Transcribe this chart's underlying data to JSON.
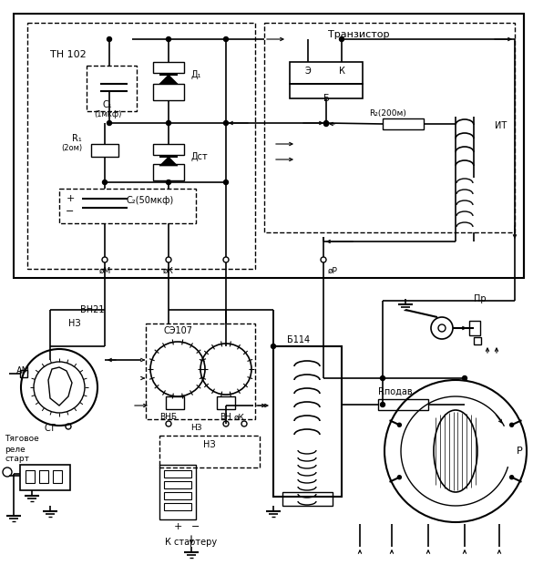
{
  "bg": "#ffffff",
  "lc": "#000000",
  "figsize": [
    5.85,
    6.2
  ],
  "dpi": 100,
  "labels": {
    "transistor": "Транзистор",
    "tn102": "ТН 102",
    "c1": "C₁",
    "c1v": "(1мкф)",
    "d1": "Д₁",
    "r1": "R₁",
    "r1v": "(2ом)",
    "dst": "Дст",
    "c2": "C₂(50мкф)",
    "m_term": "øМ",
    "k_term": "øК",
    "p_term": "øР",
    "e_label": "Э",
    "k_label": "К",
    "b_label": "Б",
    "it_label": "ИТ",
    "r2": "R₂(200м)",
    "vn21": "ВН21",
    "nz": "НЗ",
    "am": "АМ",
    "st": "СТ",
    "se107": "СЭ107",
    "vnb": "ВНБ",
    "vn": "ВН",
    "n_term": "øК",
    "b114": "Б114",
    "rpodav": "Rподав",
    "pr": "Пр",
    "r_dist": "Р",
    "tyagovoe": "Тяговое",
    "rele": "реле",
    "start": "старт",
    "k_starter": "К стартеру"
  }
}
